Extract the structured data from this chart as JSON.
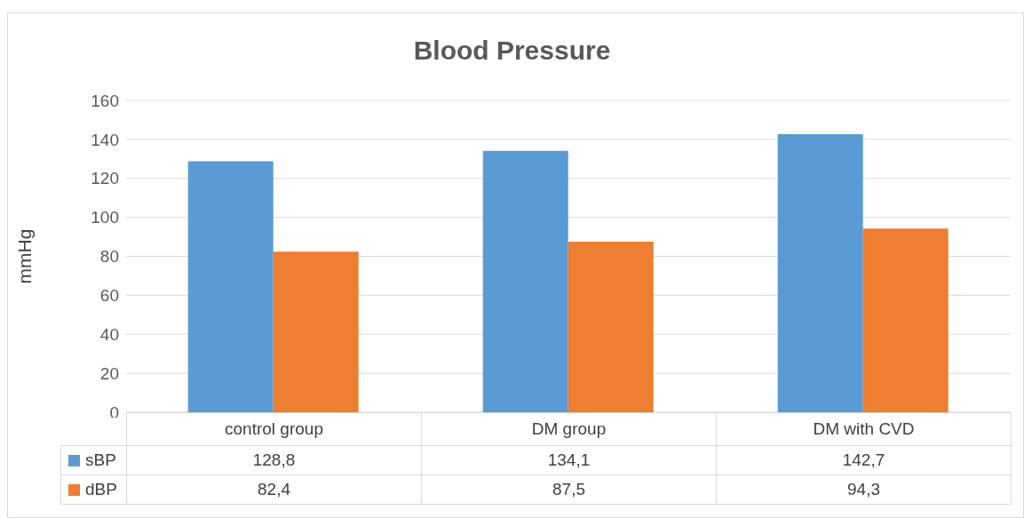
{
  "chart_data": {
    "type": "bar",
    "title": "Blood Pressure",
    "ylabel": "mmHg",
    "categories": [
      "control group",
      "DM group",
      "DM with CVD"
    ],
    "series": [
      {
        "name": "sBP",
        "color": "#5b9bd5",
        "values": [
          128.8,
          134.1,
          142.7
        ],
        "value_labels": [
          "128,8",
          "134,1",
          "142,7"
        ]
      },
      {
        "name": "dBP",
        "color": "#ed7d31",
        "values": [
          82.4,
          87.5,
          94.3
        ],
        "value_labels": [
          "82,4",
          "87,5",
          "94,3"
        ]
      }
    ],
    "ylim": [
      0,
      160
    ],
    "yticks": [
      0,
      20,
      40,
      60,
      80,
      100,
      120,
      140,
      160
    ],
    "grid": "y",
    "legend": "bottom"
  }
}
